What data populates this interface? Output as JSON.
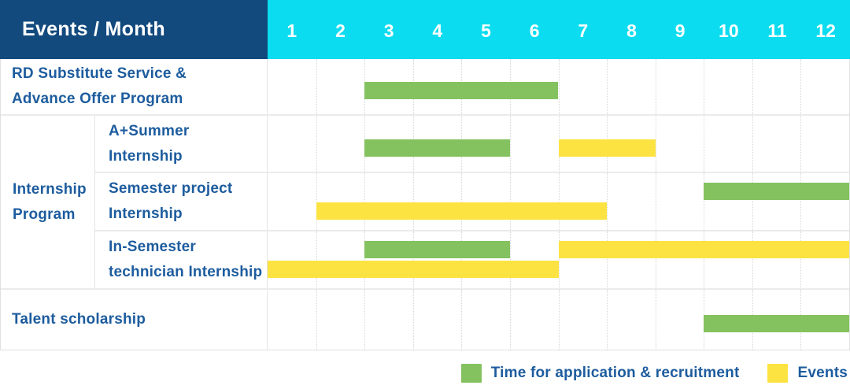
{
  "header": {
    "title": "Events / Month",
    "months": [
      "1",
      "2",
      "3",
      "4",
      "5",
      "6",
      "7",
      "8",
      "9",
      "10",
      "11",
      "12"
    ]
  },
  "colors": {
    "header_bg": "#134a7e",
    "months_bg": "#0cdcf0",
    "recruitment": "#84c25f",
    "event": "#fde342",
    "label_text": "#1d5c9e"
  },
  "group_label": "Internship\nProgram",
  "rows": [
    {
      "label": "RD Substitute Service &\nAdvance Offer Program",
      "grouped": false,
      "bars": [
        {
          "type": "recruitment",
          "start": 3,
          "end": 6,
          "lane": "single"
        }
      ]
    },
    {
      "label": "A+Summer\nInternship",
      "grouped": true,
      "bars": [
        {
          "type": "recruitment",
          "start": 3,
          "end": 5,
          "lane": "single"
        },
        {
          "type": "event",
          "start": 7,
          "end": 8,
          "lane": "single"
        }
      ]
    },
    {
      "label": "Semester project\nInternship",
      "grouped": true,
      "bars": [
        {
          "type": "recruitment",
          "start": 10,
          "end": 12,
          "lane": "top"
        },
        {
          "type": "event",
          "start": 2,
          "end": 7,
          "lane": "bottom"
        }
      ]
    },
    {
      "label": "In-Semester\ntechnician Internship",
      "grouped": true,
      "bars": [
        {
          "type": "recruitment",
          "start": 3,
          "end": 5,
          "lane": "top"
        },
        {
          "type": "event",
          "start": 7,
          "end": 12,
          "lane": "top"
        },
        {
          "type": "event",
          "start": 1,
          "end": 6,
          "lane": "bottom"
        }
      ]
    },
    {
      "label": "Talent scholarship",
      "grouped": false,
      "bars": [
        {
          "type": "recruitment",
          "start": 10,
          "end": 12,
          "lane": "single"
        }
      ]
    }
  ],
  "legend": [
    {
      "type": "recruitment",
      "label": "Time for application & recruitment"
    },
    {
      "type": "event",
      "label": "Events"
    }
  ],
  "chart_data": {
    "type": "table",
    "subtype": "gantt",
    "title": "Events / Month",
    "columns": [
      "1",
      "2",
      "3",
      "4",
      "5",
      "6",
      "7",
      "8",
      "9",
      "10",
      "11",
      "12"
    ],
    "rows": [
      {
        "name": "RD Substitute Service & Advance Offer Program",
        "group": null,
        "application_recruitment_month_ranges": [
          [
            3,
            6
          ]
        ],
        "event_month_ranges": []
      },
      {
        "name": "A+Summer Internship",
        "group": "Internship Program",
        "application_recruitment_month_ranges": [
          [
            3,
            5
          ]
        ],
        "event_month_ranges": [
          [
            7,
            8
          ]
        ]
      },
      {
        "name": "Semester project Internship",
        "group": "Internship Program",
        "application_recruitment_month_ranges": [
          [
            10,
            12
          ]
        ],
        "event_month_ranges": [
          [
            2,
            7
          ]
        ]
      },
      {
        "name": "In-Semester technician Internship",
        "group": "Internship Program",
        "application_recruitment_month_ranges": [
          [
            3,
            5
          ]
        ],
        "event_month_ranges": [
          [
            1,
            6
          ],
          [
            7,
            12
          ]
        ]
      },
      {
        "name": "Talent scholarship",
        "group": null,
        "application_recruitment_month_ranges": [
          [
            10,
            12
          ]
        ],
        "event_month_ranges": []
      }
    ],
    "legend": [
      "Time for application & recruitment",
      "Events"
    ]
  }
}
